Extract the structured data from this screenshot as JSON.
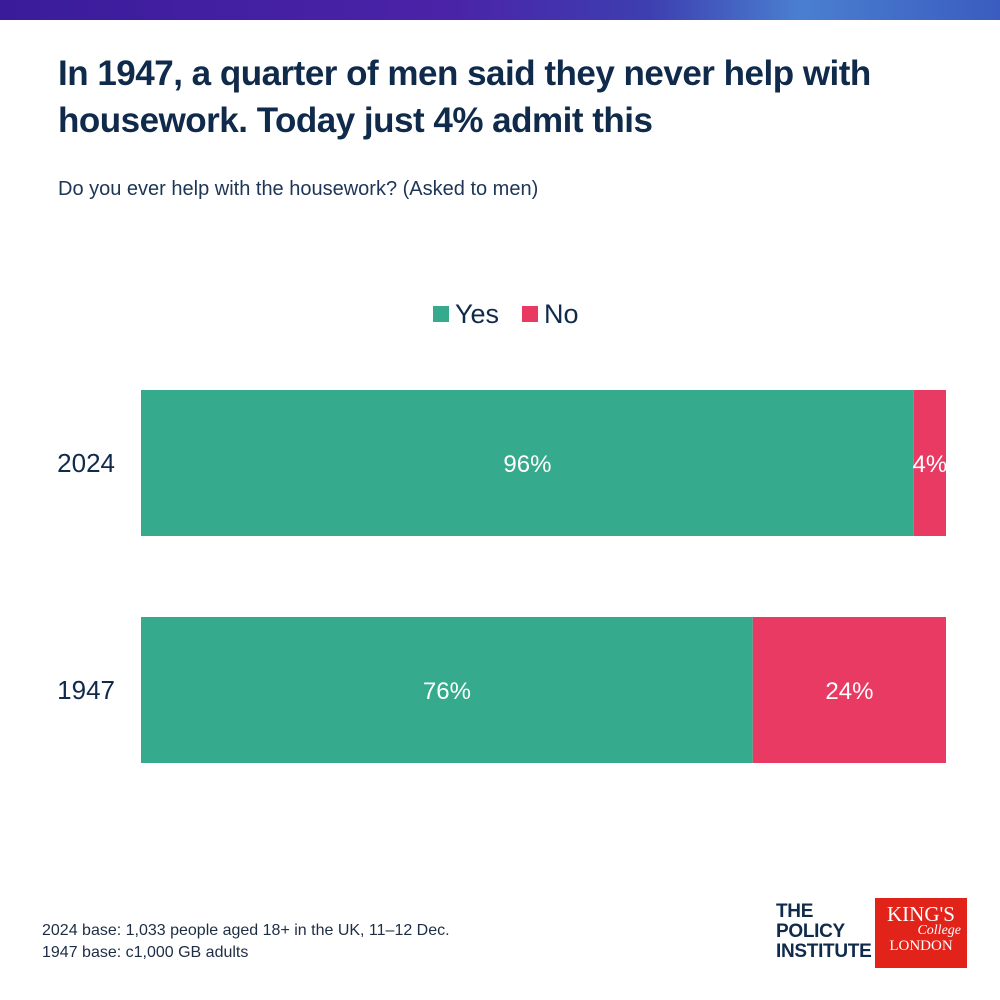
{
  "page": {
    "title": "In 1947, a quarter of men said they never help with housework. Today just 4% admit this",
    "subtitle": "Do you ever help with the housework? (Asked to men)",
    "footnote_lines": [
      "2024 base: 1,033 people aged 18+ in the UK, 11–12 Dec.",
      "1947 base: c1,000 GB adults"
    ],
    "logos": {
      "policy_institute_lines": [
        "THE",
        "POLICY",
        "INSTITUTE"
      ],
      "kcl_lines": [
        "KING'S",
        "College",
        "LONDON"
      ]
    }
  },
  "colors": {
    "yes": "#35aa8c",
    "no": "#e93a63",
    "title": "#0f2a4a"
  },
  "chart_data": {
    "type": "bar",
    "orientation": "horizontal",
    "stacked": true,
    "normalized": true,
    "categories": [
      "2024",
      "1947"
    ],
    "series": [
      {
        "name": "Yes",
        "values": [
          96,
          76
        ],
        "labels": [
          "96%",
          "76%"
        ]
      },
      {
        "name": "No",
        "values": [
          4,
          24
        ],
        "labels": [
          "4%",
          "24%"
        ]
      }
    ],
    "xlim": [
      0,
      100
    ],
    "legend": {
      "position": "top-center",
      "entries": [
        "Yes",
        "No"
      ]
    },
    "grid": false,
    "title": "In 1947, a quarter of men said they never help with housework. Today just 4% admit this",
    "subtitle": "Do you ever help with the housework? (Asked to men)"
  }
}
